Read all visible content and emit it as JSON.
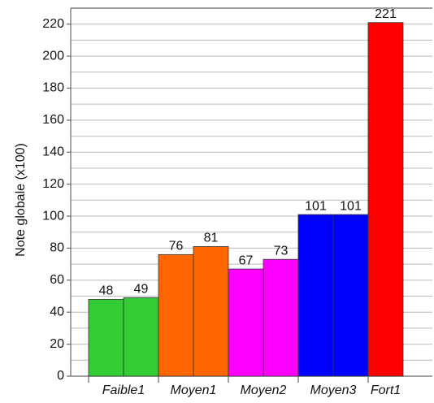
{
  "chart_data": {
    "type": "grouped_bar",
    "ylabel": "Note globale (x100)",
    "groups": [
      {
        "name": "Faible1",
        "color": "#33cc33",
        "values": [
          48,
          49
        ]
      },
      {
        "name": "Moyen1",
        "color": "#ff6600",
        "values": [
          76,
          81
        ]
      },
      {
        "name": "Moyen2",
        "color": "#ff00ff",
        "values": [
          67,
          73
        ]
      },
      {
        "name": "Moyen3",
        "color": "#0000ff",
        "values": [
          101,
          101
        ]
      },
      {
        "name": "Fort1",
        "color": "#ff0000",
        "values": [
          221
        ]
      }
    ],
    "ylim": [
      0,
      230
    ],
    "yticks": [
      0,
      20,
      40,
      60,
      80,
      100,
      120,
      140,
      160,
      180,
      200,
      220
    ],
    "minor_yticks": [
      10,
      30,
      50,
      70,
      90,
      110,
      130,
      150,
      170,
      190,
      210
    ],
    "grid": true
  }
}
